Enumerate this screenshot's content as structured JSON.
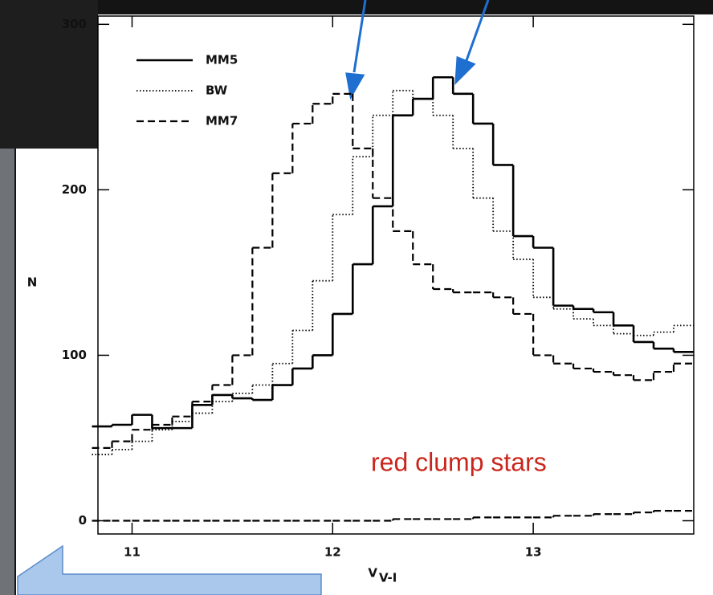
{
  "chart_data": {
    "type": "step",
    "xlabel": "V",
    "xlabel_subscript": "V-I",
    "ylabel": "N",
    "annotation": "red clump stars",
    "xlim": [
      10.83,
      13.8
    ],
    "ylim": [
      -8,
      305
    ],
    "xticks": [
      11,
      12,
      13
    ],
    "yticks": [
      0,
      100,
      200,
      300
    ],
    "x": [
      10.85,
      10.95,
      11.05,
      11.15,
      11.25,
      11.35,
      11.45,
      11.55,
      11.65,
      11.75,
      11.85,
      11.95,
      12.05,
      12.15,
      12.25,
      12.35,
      12.45,
      12.55,
      12.65,
      12.75,
      12.85,
      12.95,
      13.05,
      13.15,
      13.25,
      13.35,
      13.45,
      13.55,
      13.65,
      13.75
    ],
    "series": [
      {
        "name": "MM5",
        "color": "#000000",
        "line_style": "solid",
        "values": [
          57,
          58,
          64,
          56,
          56,
          70,
          76,
          74,
          73,
          82,
          92,
          100,
          125,
          155,
          190,
          245,
          255,
          268,
          258,
          240,
          215,
          172,
          165,
          130,
          128,
          126,
          118,
          108,
          104,
          102
        ]
      },
      {
        "name": "BW",
        "color": "#000000",
        "line_style": "dotted",
        "values": [
          40,
          43,
          48,
          55,
          60,
          65,
          72,
          77,
          82,
          95,
          115,
          145,
          185,
          220,
          245,
          260,
          255,
          245,
          225,
          195,
          175,
          158,
          135,
          128,
          122,
          118,
          113,
          112,
          114,
          118
        ]
      },
      {
        "name": "MM7",
        "color": "#000000",
        "line_style": "dashed",
        "values": [
          44,
          48,
          55,
          58,
          63,
          72,
          82,
          100,
          165,
          210,
          240,
          252,
          258,
          225,
          195,
          175,
          155,
          140,
          138,
          138,
          135,
          125,
          100,
          95,
          92,
          90,
          88,
          85,
          90,
          95
        ]
      },
      {
        "color": "#000000",
        "line_style": "dashed",
        "values": [
          0,
          0,
          0,
          0,
          0,
          0,
          0,
          0,
          0,
          0,
          0,
          0,
          0,
          0,
          0,
          1,
          1,
          1,
          1,
          2,
          2,
          2,
          2,
          3,
          3,
          4,
          4,
          5,
          6,
          6
        ]
      }
    ]
  }
}
